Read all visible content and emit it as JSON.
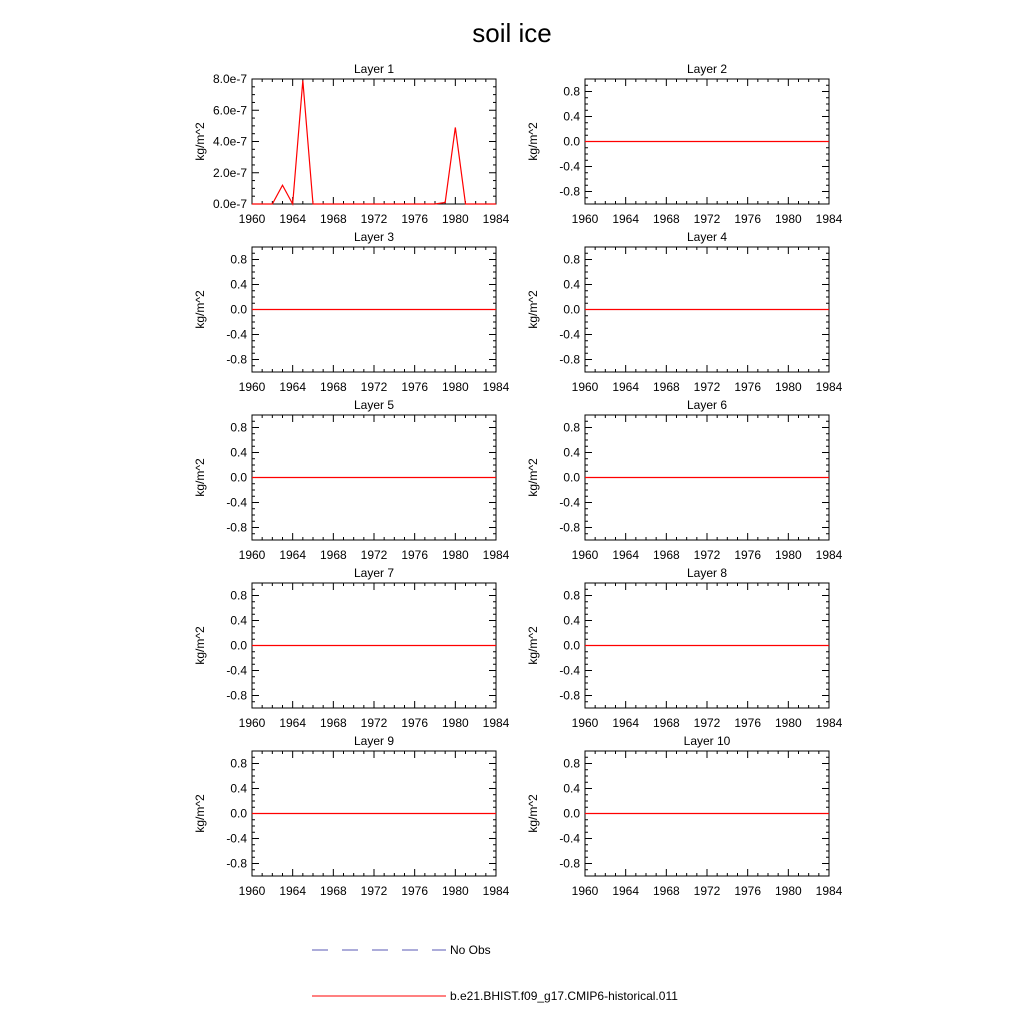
{
  "figure_title": "soil ice",
  "legend": {
    "entries": [
      {
        "label": "No Obs",
        "color": "#5a5ab4",
        "style": "dashed"
      },
      {
        "label": "b.e21.BHIST.f09_g17.CMIP6-historical.011",
        "color": "#ff0000",
        "style": "solid"
      }
    ]
  },
  "chart_data": [
    {
      "type": "line",
      "title": "Layer 1",
      "ylabel": "kg/m^2",
      "xlim": [
        1960,
        1984
      ],
      "ylim": [
        0,
        8e-07
      ],
      "x_ticks": [
        1960,
        1964,
        1968,
        1972,
        1976,
        1980,
        1984
      ],
      "x_tick_labels": [
        "1960",
        "1964",
        "1968",
        "1972",
        "1976",
        "1980",
        "1984"
      ],
      "y_ticks": [
        0,
        2e-07,
        4e-07,
        6e-07,
        8e-07
      ],
      "y_tick_labels": [
        "0.0e-7",
        "2.0e-7",
        "4.0e-7",
        "6.0e-7",
        "8.0e-7"
      ],
      "series": [
        {
          "name": "b.e21.BHIST.f09_g17.CMIP6-historical.011",
          "color": "#ff0000",
          "x": [
            1960,
            1961,
            1962,
            1963,
            1964,
            1965,
            1966,
            1967,
            1968,
            1969,
            1970,
            1971,
            1972,
            1973,
            1974,
            1975,
            1976,
            1977,
            1978,
            1979,
            1980,
            1981,
            1982,
            1983,
            1984
          ],
          "values": [
            0,
            0,
            0,
            1.2e-07,
            0,
            7.9e-07,
            0,
            0,
            0,
            0,
            0,
            0,
            0,
            0,
            0,
            0,
            0,
            0,
            0,
            1e-08,
            4.9e-07,
            0,
            0,
            0,
            0
          ]
        }
      ]
    },
    {
      "type": "line",
      "title": "Layer 2",
      "ylabel": "kg/m^2",
      "xlim": [
        1960,
        1984
      ],
      "ylim": [
        -1,
        1
      ],
      "x_ticks": [
        1960,
        1964,
        1968,
        1972,
        1976,
        1980,
        1984
      ],
      "x_tick_labels": [
        "1960",
        "1964",
        "1968",
        "1972",
        "1976",
        "1980",
        "1984"
      ],
      "y_ticks": [
        -0.8,
        -0.4,
        0,
        0.4,
        0.8
      ],
      "y_tick_labels": [
        "-0.8",
        "-0.4",
        "0.0",
        "0.4",
        "0.8"
      ],
      "series": [
        {
          "name": "b.e21.BHIST.f09_g17.CMIP6-historical.011",
          "color": "#ff0000",
          "x": [
            1960,
            1984
          ],
          "values": [
            0,
            0
          ]
        }
      ]
    },
    {
      "type": "line",
      "title": "Layer 3",
      "ylabel": "kg/m^2",
      "xlim": [
        1960,
        1984
      ],
      "ylim": [
        -1,
        1
      ],
      "x_ticks": [
        1960,
        1964,
        1968,
        1972,
        1976,
        1980,
        1984
      ],
      "x_tick_labels": [
        "1960",
        "1964",
        "1968",
        "1972",
        "1976",
        "1980",
        "1984"
      ],
      "y_ticks": [
        -0.8,
        -0.4,
        0,
        0.4,
        0.8
      ],
      "y_tick_labels": [
        "-0.8",
        "-0.4",
        "0.0",
        "0.4",
        "0.8"
      ],
      "series": [
        {
          "name": "b.e21.BHIST.f09_g17.CMIP6-historical.011",
          "color": "#ff0000",
          "x": [
            1960,
            1984
          ],
          "values": [
            0,
            0
          ]
        }
      ]
    },
    {
      "type": "line",
      "title": "Layer 4",
      "ylabel": "kg/m^2",
      "xlim": [
        1960,
        1984
      ],
      "ylim": [
        -1,
        1
      ],
      "x_ticks": [
        1960,
        1964,
        1968,
        1972,
        1976,
        1980,
        1984
      ],
      "x_tick_labels": [
        "1960",
        "1964",
        "1968",
        "1972",
        "1976",
        "1980",
        "1984"
      ],
      "y_ticks": [
        -0.8,
        -0.4,
        0,
        0.4,
        0.8
      ],
      "y_tick_labels": [
        "-0.8",
        "-0.4",
        "0.0",
        "0.4",
        "0.8"
      ],
      "series": [
        {
          "name": "b.e21.BHIST.f09_g17.CMIP6-historical.011",
          "color": "#ff0000",
          "x": [
            1960,
            1984
          ],
          "values": [
            0,
            0
          ]
        }
      ]
    },
    {
      "type": "line",
      "title": "Layer 5",
      "ylabel": "kg/m^2",
      "xlim": [
        1960,
        1984
      ],
      "ylim": [
        -1,
        1
      ],
      "x_ticks": [
        1960,
        1964,
        1968,
        1972,
        1976,
        1980,
        1984
      ],
      "x_tick_labels": [
        "1960",
        "1964",
        "1968",
        "1972",
        "1976",
        "1980",
        "1984"
      ],
      "y_ticks": [
        -0.8,
        -0.4,
        0,
        0.4,
        0.8
      ],
      "y_tick_labels": [
        "-0.8",
        "-0.4",
        "0.0",
        "0.4",
        "0.8"
      ],
      "series": [
        {
          "name": "b.e21.BHIST.f09_g17.CMIP6-historical.011",
          "color": "#ff0000",
          "x": [
            1960,
            1984
          ],
          "values": [
            0,
            0
          ]
        }
      ]
    },
    {
      "type": "line",
      "title": "Layer 6",
      "ylabel": "kg/m^2",
      "xlim": [
        1960,
        1984
      ],
      "ylim": [
        -1,
        1
      ],
      "x_ticks": [
        1960,
        1964,
        1968,
        1972,
        1976,
        1980,
        1984
      ],
      "x_tick_labels": [
        "1960",
        "1964",
        "1968",
        "1972",
        "1976",
        "1980",
        "1984"
      ],
      "y_ticks": [
        -0.8,
        -0.4,
        0,
        0.4,
        0.8
      ],
      "y_tick_labels": [
        "-0.8",
        "-0.4",
        "0.0",
        "0.4",
        "0.8"
      ],
      "series": [
        {
          "name": "b.e21.BHIST.f09_g17.CMIP6-historical.011",
          "color": "#ff0000",
          "x": [
            1960,
            1984
          ],
          "values": [
            0,
            0
          ]
        }
      ]
    },
    {
      "type": "line",
      "title": "Layer 7",
      "ylabel": "kg/m^2",
      "xlim": [
        1960,
        1984
      ],
      "ylim": [
        -1,
        1
      ],
      "x_ticks": [
        1960,
        1964,
        1968,
        1972,
        1976,
        1980,
        1984
      ],
      "x_tick_labels": [
        "1960",
        "1964",
        "1968",
        "1972",
        "1976",
        "1980",
        "1984"
      ],
      "y_ticks": [
        -0.8,
        -0.4,
        0,
        0.4,
        0.8
      ],
      "y_tick_labels": [
        "-0.8",
        "-0.4",
        "0.0",
        "0.4",
        "0.8"
      ],
      "series": [
        {
          "name": "b.e21.BHIST.f09_g17.CMIP6-historical.011",
          "color": "#ff0000",
          "x": [
            1960,
            1984
          ],
          "values": [
            0,
            0
          ]
        }
      ]
    },
    {
      "type": "line",
      "title": "Layer 8",
      "ylabel": "kg/m^2",
      "xlim": [
        1960,
        1984
      ],
      "ylim": [
        -1,
        1
      ],
      "x_ticks": [
        1960,
        1964,
        1968,
        1972,
        1976,
        1980,
        1984
      ],
      "x_tick_labels": [
        "1960",
        "1964",
        "1968",
        "1972",
        "1976",
        "1980",
        "1984"
      ],
      "y_ticks": [
        -0.8,
        -0.4,
        0,
        0.4,
        0.8
      ],
      "y_tick_labels": [
        "-0.8",
        "-0.4",
        "0.0",
        "0.4",
        "0.8"
      ],
      "series": [
        {
          "name": "b.e21.BHIST.f09_g17.CMIP6-historical.011",
          "color": "#ff0000",
          "x": [
            1960,
            1984
          ],
          "values": [
            0,
            0
          ]
        }
      ]
    },
    {
      "type": "line",
      "title": "Layer 9",
      "ylabel": "kg/m^2",
      "xlim": [
        1960,
        1984
      ],
      "ylim": [
        -1,
        1
      ],
      "x_ticks": [
        1960,
        1964,
        1968,
        1972,
        1976,
        1980,
        1984
      ],
      "x_tick_labels": [
        "1960",
        "1964",
        "1968",
        "1972",
        "1976",
        "1980",
        "1984"
      ],
      "y_ticks": [
        -0.8,
        -0.4,
        0,
        0.4,
        0.8
      ],
      "y_tick_labels": [
        "-0.8",
        "-0.4",
        "0.0",
        "0.4",
        "0.8"
      ],
      "series": [
        {
          "name": "b.e21.BHIST.f09_g17.CMIP6-historical.011",
          "color": "#ff0000",
          "x": [
            1960,
            1984
          ],
          "values": [
            0,
            0
          ]
        }
      ]
    },
    {
      "type": "line",
      "title": "Layer 10",
      "ylabel": "kg/m^2",
      "xlim": [
        1960,
        1984
      ],
      "ylim": [
        -1,
        1
      ],
      "x_ticks": [
        1960,
        1964,
        1968,
        1972,
        1976,
        1980,
        1984
      ],
      "x_tick_labels": [
        "1960",
        "1964",
        "1968",
        "1972",
        "1976",
        "1980",
        "1984"
      ],
      "y_ticks": [
        -0.8,
        -0.4,
        0,
        0.4,
        0.8
      ],
      "y_tick_labels": [
        "-0.8",
        "-0.4",
        "0.0",
        "0.4",
        "0.8"
      ],
      "series": [
        {
          "name": "b.e21.BHIST.f09_g17.CMIP6-historical.011",
          "color": "#ff0000",
          "x": [
            1960,
            1984
          ],
          "values": [
            0,
            0
          ]
        }
      ]
    }
  ]
}
